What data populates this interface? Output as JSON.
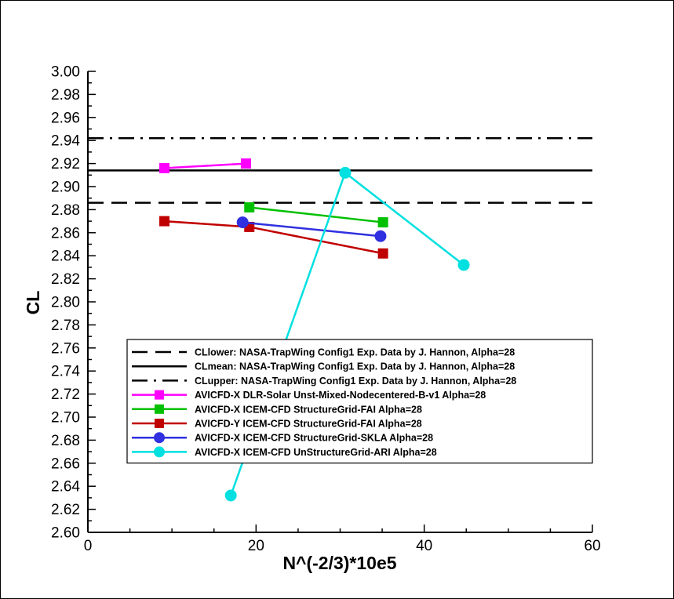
{
  "chart_data": {
    "type": "line",
    "title": "",
    "xlabel": "N^(-2/3)*10e5",
    "ylabel": "CL",
    "xlim": [
      0,
      60
    ],
    "ylim": [
      2.6,
      3.0
    ],
    "x_major_ticks": [
      0,
      20,
      40,
      60
    ],
    "x_tick_labels": [
      "0",
      "20",
      "40",
      "60"
    ],
    "x_minor_step": 5,
    "y_ticks": [
      2.6,
      2.62,
      2.64,
      2.66,
      2.68,
      2.7,
      2.72,
      2.74,
      2.76,
      2.78,
      2.8,
      2.82,
      2.84,
      2.86,
      2.88,
      2.9,
      2.92,
      2.94,
      2.96,
      2.98,
      3.0
    ],
    "y_tick_labels": [
      "2.60",
      "2.62",
      "2.64",
      "2.66",
      "2.68",
      "2.70",
      "2.72",
      "2.74",
      "2.76",
      "2.78",
      "2.80",
      "2.82",
      "2.84",
      "2.86",
      "2.88",
      "2.90",
      "2.92",
      "2.94",
      "2.96",
      "2.98",
      "3.00"
    ],
    "reference_lines": [
      {
        "name": "CLlower: NASA-TrapWing Config1 Exp. Data by J. Hannon, Alpha=28",
        "value": 2.886,
        "style": "dashed",
        "color": "#000000"
      },
      {
        "name": "CLmean: NASA-TrapWing Config1 Exp. Data by J. Hannon, Alpha=28",
        "value": 2.914,
        "style": "solid",
        "color": "#000000"
      },
      {
        "name": "CLupper: NASA-TrapWing Config1 Exp. Data by J. Hannon, Alpha=28",
        "value": 2.942,
        "style": "dashdot",
        "color": "#000000"
      }
    ],
    "series": [
      {
        "name": "AVICFD-X DLR-Solar Unst-Mixed-Nodecentered-B-v1 Alpha=28",
        "color": "#ff00ff",
        "marker": "square",
        "x": [
          9.1,
          18.8
        ],
        "y": [
          2.916,
          2.92
        ]
      },
      {
        "name": "AVICFD-X ICEM-CFD StructureGrid-FAI Alpha=28",
        "color": "#00c000",
        "marker": "square",
        "x": [
          19.2,
          35.1
        ],
        "y": [
          2.882,
          2.869
        ]
      },
      {
        "name": "AVICFD-Y ICEM-CFD StructureGrid-FAI Alpha=28",
        "color": "#c00000",
        "marker": "square",
        "x": [
          9.1,
          19.2,
          35.1
        ],
        "y": [
          2.87,
          2.865,
          2.842
        ]
      },
      {
        "name": "AVICFD-X ICEM-CFD StructureGrid-SKLA Alpha=28",
        "color": "#3030e0",
        "marker": "circle",
        "x": [
          18.4,
          34.8
        ],
        "y": [
          2.869,
          2.857
        ]
      },
      {
        "name": "AVICFD-X ICEM-CFD UnStructureGrid-ARI Alpha=28",
        "color": "#00e0e0",
        "marker": "circle",
        "x": [
          17.0,
          30.6,
          44.7
        ],
        "y": [
          2.632,
          2.912,
          2.832
        ]
      }
    ],
    "legend_placement": "bottom-center",
    "grid": false
  }
}
